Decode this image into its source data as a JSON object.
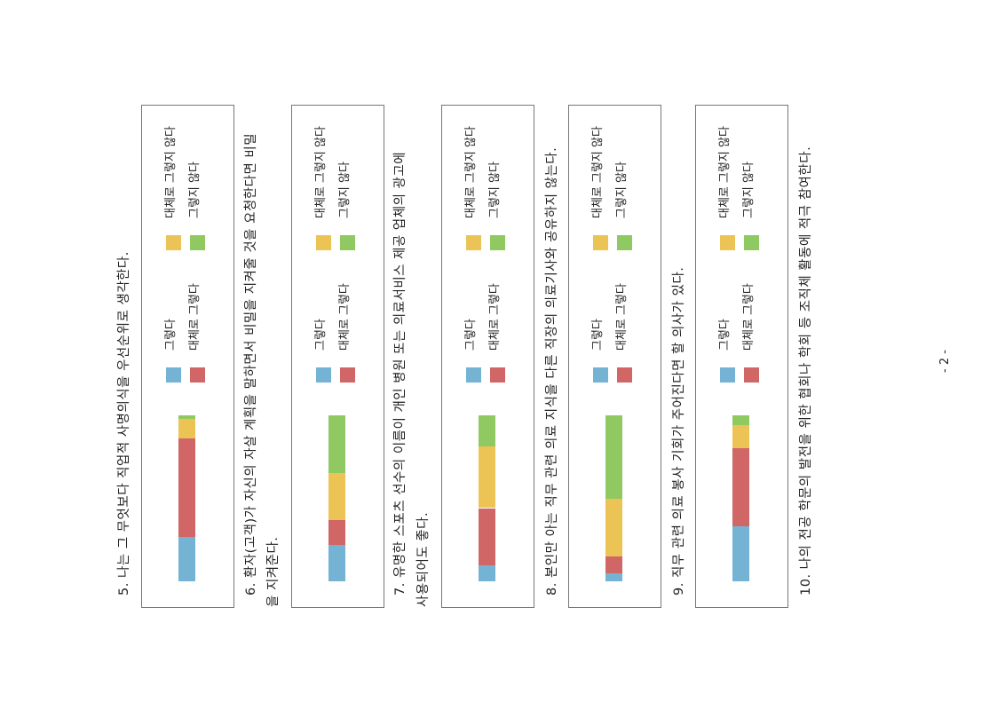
{
  "page_number": "- 2 -",
  "legend": [
    "그렇다",
    "대체로 그렇다",
    "대체로 그렇지 않다",
    "그렇지 않다"
  ],
  "colors": {
    "그렇다": "#74b3d4",
    "대체로 그렇다": "#d06666",
    "대체로 그렇지 않다": "#ecc355",
    "그렇지 않다": "#90c962"
  },
  "questions": [
    {
      "lines": [
        "5. 나는 그 무엇보다 직업적 사명의식을 우선순위로 생각한다."
      ]
    },
    {
      "lines": [
        "6. 환자(고객)가 자신의 자살 계획을 말하면서 비밀을 지켜줄 것을 요청한다면 비밀",
        "을 지켜준다."
      ]
    },
    {
      "lines": [
        "7. 유명한 스포츠 선수의 이름이 개인 병원 또는 의료서비스 제공 업체의 광고에",
        "사용되어도 좋다."
      ]
    },
    {
      "lines": [
        "8. 본인만 아는 직무 관련 의료 지식을 다른 직장의 의료기사와 공유하지 않는다."
      ]
    },
    {
      "lines": [
        "9. 직무 관련 의료 봉사 기회가 주어진다면 할 의사가 있다."
      ]
    },
    {
      "lines": [
        "10. 나의 전공 학문의 발전을 위한 협회나 학회 등 조직체 활동에 적극 참여한다."
      ]
    }
  ],
  "chart_data": [
    {
      "type": "bar",
      "title": "5",
      "categories": [
        "그렇다",
        "대체로 그렇다",
        "대체로 그렇지 않다",
        "그렇지 않다"
      ],
      "values": [
        27,
        59,
        12,
        2
      ]
    },
    {
      "type": "bar",
      "title": "6",
      "categories": [
        "그렇다",
        "대체로 그렇다",
        "대체로 그렇지 않다",
        "그렇지 않다"
      ],
      "values": [
        22,
        15,
        28,
        35
      ]
    },
    {
      "type": "bar",
      "title": "7",
      "categories": [
        "그렇다",
        "대체로 그렇다",
        "대체로 그렇지 않다",
        "그렇지 않다"
      ],
      "values": [
        10,
        35,
        38,
        19
      ]
    },
    {
      "type": "bar",
      "title": "8",
      "categories": [
        "그렇다",
        "대체로 그렇다",
        "대체로 그렇지 않다",
        "그렇지 않다"
      ],
      "values": [
        5,
        10,
        35,
        50
      ]
    },
    {
      "type": "bar",
      "title": "9",
      "categories": [
        "그렇다",
        "대체로 그렇다",
        "대체로 그렇지 않다",
        "그렇지 않다"
      ],
      "values": [
        33,
        47,
        14,
        6
      ]
    },
    {
      "type": "bar",
      "title": "10",
      "categories": [],
      "values": []
    }
  ]
}
